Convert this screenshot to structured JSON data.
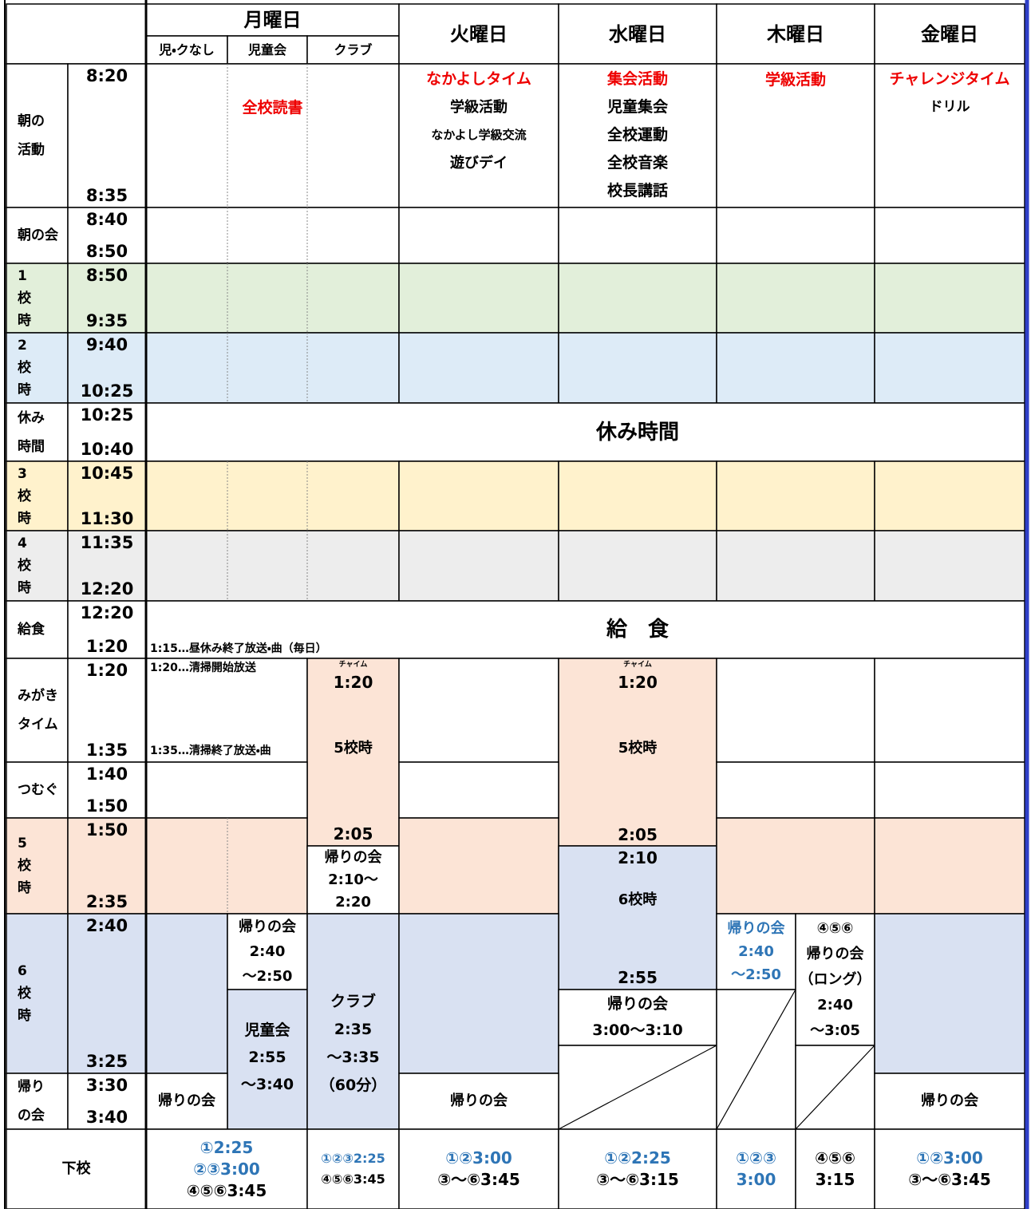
{
  "header": {
    "days": [
      "月曜日",
      "火曜日",
      "水曜日",
      "木曜日",
      "金曜日"
    ],
    "monday_columns": [
      "児・クなし",
      "児童会",
      "クラブ"
    ]
  },
  "periods": [
    {
      "label": [
        "朝の",
        "活動"
      ],
      "start": "8:20",
      "end": "8:35"
    },
    {
      "label": [
        "朝の会"
      ],
      "start": "8:40",
      "end": "8:50"
    },
    {
      "label": [
        "1",
        "校",
        "時"
      ],
      "start": "8:50",
      "end": "9:35"
    },
    {
      "label": [
        "2",
        "校",
        "時"
      ],
      "start": "9:40",
      "end": "10:25"
    },
    {
      "label": [
        "休み",
        "時間"
      ],
      "start": "10:25",
      "end": "10:40"
    },
    {
      "label": [
        "3",
        "校",
        "時"
      ],
      "start": "10:45",
      "end": "11:30"
    },
    {
      "label": [
        "4",
        "校",
        "時"
      ],
      "start": "11:35",
      "end": "12:20"
    },
    {
      "label": [
        "給食"
      ],
      "start": "12:20",
      "end": "1:20"
    },
    {
      "label": [
        "みがき",
        "タイム"
      ],
      "start": "1:20",
      "end": "1:35"
    },
    {
      "label": [
        "つむぐ"
      ],
      "start": "1:40",
      "end": "1:50"
    },
    {
      "label": [
        "5",
        "校",
        "時"
      ],
      "start": "1:50",
      "end": "2:35"
    },
    {
      "label": [
        "6",
        "校",
        "時"
      ],
      "start": "2:40",
      "end": "3:25"
    },
    {
      "label": [
        "帰り",
        "の会"
      ],
      "start": "3:30",
      "end": "3:40"
    }
  ],
  "morning_activities": {
    "monday": "全校読書",
    "tuesday": [
      "なかよしタイム",
      "学級活動",
      "なかよし学級交流",
      "遊びデイ"
    ],
    "wednesday": [
      "集会活動",
      "児童集会",
      "全校運動",
      "全校音楽",
      "校長講話"
    ],
    "thursday": "学級活動",
    "friday": [
      "チャレンジタイム",
      "ドリル"
    ]
  },
  "break": "休み時間",
  "lunch": {
    "title": "給　食",
    "note": "1:15…昼休み終了放送・曲（毎日）"
  },
  "cleaning": {
    "monday_notes": [
      "1:20…清掃開始放送",
      "1:35…清掃終了放送・曲"
    ]
  },
  "monday_club": {
    "chime": "チャイム",
    "start": "1:20",
    "period": "5校時",
    "end": "2:05",
    "homeroom": [
      "帰りの会",
      "2:10～",
      "2:20"
    ],
    "club": [
      "クラブ",
      "2:35",
      "～3:35",
      "（60分）"
    ]
  },
  "monday_council": {
    "homeroom": [
      "帰りの会",
      "2:40",
      "～2:50"
    ],
    "council": [
      "児童会",
      "2:55",
      "～3:40"
    ]
  },
  "wednesday": {
    "chime": "チャイム",
    "start": "1:20",
    "period5": "5校時",
    "end5": "2:05",
    "start6": "2:10",
    "period6": "6校時",
    "end6": "2:55",
    "homeroom": [
      "帰りの会",
      "3:00～3:10"
    ]
  },
  "thursday": {
    "homeroom_123": [
      "帰りの会",
      "2:40",
      "～2:50"
    ],
    "homeroom_456": [
      "④⑤⑥",
      "帰りの会",
      "（ロング）",
      "2:40",
      "～3:05"
    ]
  },
  "homeroom": {
    "monday": "帰りの会",
    "tuesday": "帰りの会",
    "friday": "帰りの会"
  },
  "dismissal": {
    "label": "下校",
    "monday": [
      "①2:25",
      "②③3:00",
      "④⑤⑥3:45"
    ],
    "monday_club": [
      "①②③2:25",
      "④⑤⑥3:45"
    ],
    "tuesday": [
      "①②3:00",
      "③～⑥3:45"
    ],
    "wednesday": [
      "①②2:25",
      "③～⑥3:15"
    ],
    "thursday_123": [
      "①②③",
      "3:00"
    ],
    "thursday_456": [
      "④⑤⑥",
      "3:15"
    ],
    "friday": [
      "①②3:00",
      "③～⑥3:45"
    ]
  }
}
